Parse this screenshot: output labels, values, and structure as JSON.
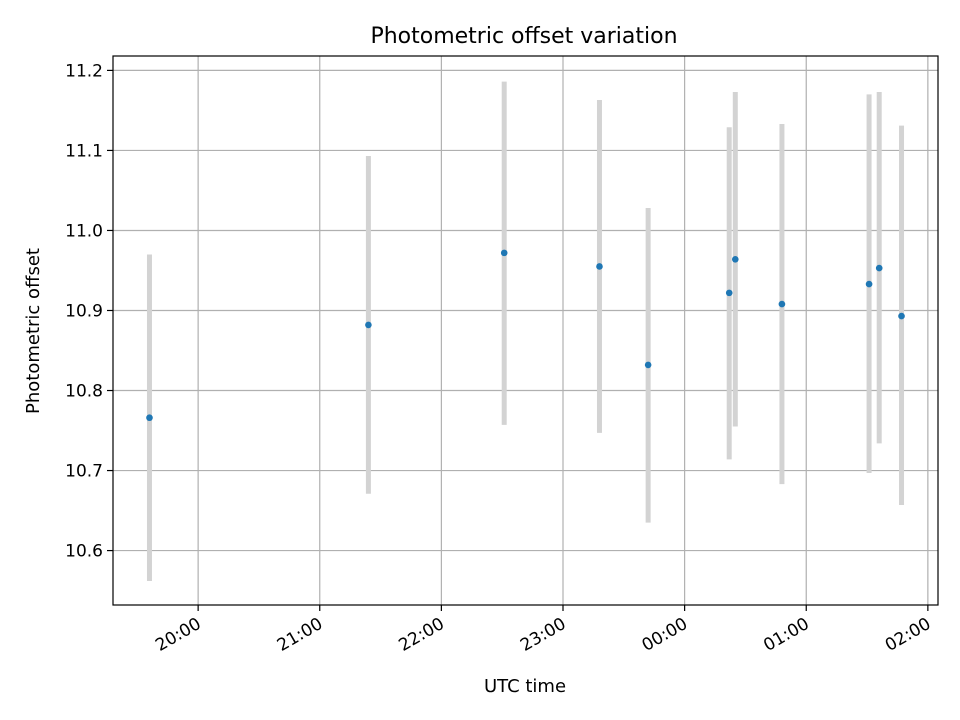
{
  "chart_data": {
    "type": "scatter",
    "title": "Photometric offset variation",
    "xlabel": "UTC time",
    "ylabel": "Photometric offset",
    "x_axis_kind": "time",
    "xlim": [
      "19:18",
      "02:05"
    ],
    "ylim": [
      10.532,
      11.218
    ],
    "x_ticks": [
      "20:00",
      "21:00",
      "22:00",
      "23:00",
      "00:00",
      "01:00",
      "02:00"
    ],
    "y_ticks": [
      10.6,
      10.7,
      10.8,
      10.9,
      11.0,
      11.1,
      11.2
    ],
    "y_tick_labels": [
      "10.6",
      "10.7",
      "10.8",
      "10.9",
      "11.0",
      "11.1",
      "11.2"
    ],
    "grid": true,
    "marker_color": "#1f77b4",
    "errorbar_color": "#d3d3d3",
    "points": [
      {
        "time": "19:36",
        "y": 10.766,
        "ymin": 10.562,
        "ymax": 10.97
      },
      {
        "time": "21:24",
        "y": 10.882,
        "ymin": 10.671,
        "ymax": 11.093
      },
      {
        "time": "22:31",
        "y": 10.972,
        "ymin": 10.757,
        "ymax": 11.186
      },
      {
        "time": "23:18",
        "y": 10.955,
        "ymin": 10.747,
        "ymax": 11.163
      },
      {
        "time": "23:42",
        "y": 10.832,
        "ymin": 10.635,
        "ymax": 11.028
      },
      {
        "time": "00:22",
        "y": 10.922,
        "ymin": 10.714,
        "ymax": 11.129
      },
      {
        "time": "00:25",
        "y": 10.964,
        "ymin": 10.755,
        "ymax": 11.173
      },
      {
        "time": "00:48",
        "y": 10.908,
        "ymin": 10.683,
        "ymax": 11.133
      },
      {
        "time": "01:31",
        "y": 10.933,
        "ymin": 10.697,
        "ymax": 11.17
      },
      {
        "time": "01:36",
        "y": 10.953,
        "ymin": 10.734,
        "ymax": 11.173
      },
      {
        "time": "01:47",
        "y": 10.893,
        "ymin": 10.657,
        "ymax": 11.131
      }
    ]
  }
}
